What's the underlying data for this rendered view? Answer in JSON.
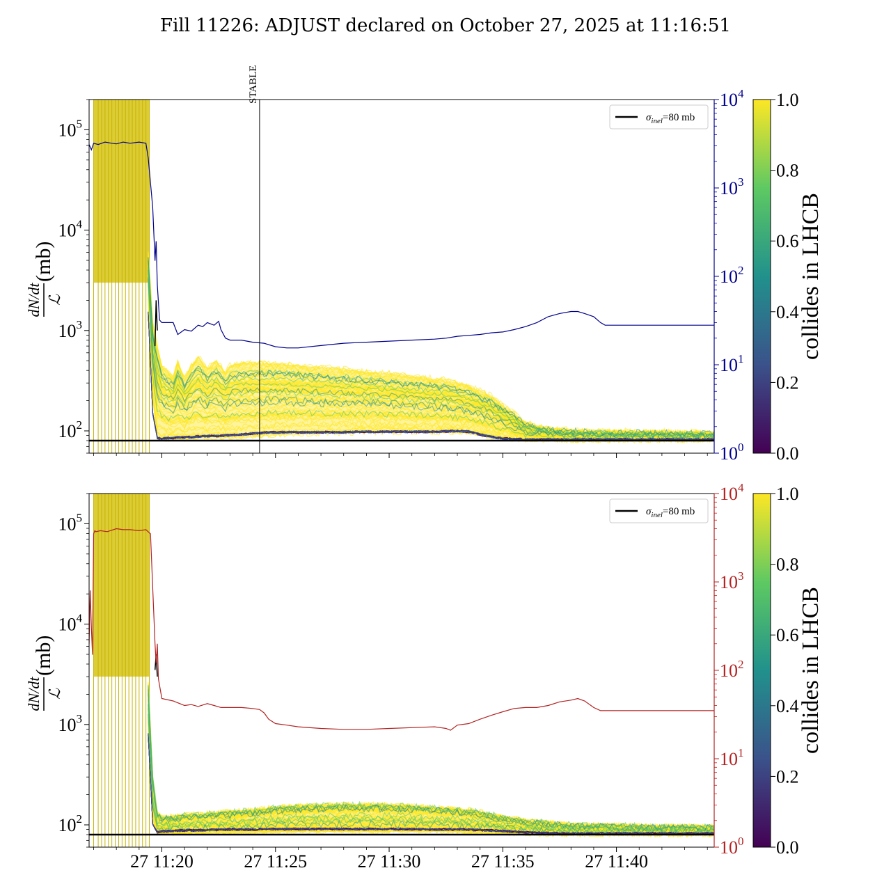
{
  "title": "Fill 11226: ADJUST declared on October 27, 2025 at 11:16:51",
  "colors": {
    "top_right_axis": "#00008b",
    "bottom_right_axis": "#b22222",
    "reference_line": "#000000",
    "colormap": [
      "#440154",
      "#3b528b",
      "#21918c",
      "#5ec962",
      "#fde725"
    ]
  },
  "chart_data": [
    {
      "type": "line",
      "name": "top",
      "yscale": "log",
      "ylim": [
        60,
        200000
      ],
      "ylabel_fraction_top": "dN/dt",
      "ylabel_fraction_bottom": "ℒ",
      "ylabel_unit": " (mb)",
      "left_ticks": [
        {
          "base": "10",
          "exp": "2",
          "value": 100
        },
        {
          "base": "10",
          "exp": "3",
          "value": 1000
        },
        {
          "base": "10",
          "exp": "4",
          "value": 10000
        },
        {
          "base": "10",
          "exp": "5",
          "value": 100000
        }
      ],
      "right_yscale": "log",
      "right_ylim": [
        1,
        10000
      ],
      "right_ticks": [
        {
          "base": "10",
          "exp": "0",
          "value": 1
        },
        {
          "base": "10",
          "exp": "1",
          "value": 10
        },
        {
          "base": "10",
          "exp": "2",
          "value": 100
        },
        {
          "base": "10",
          "exp": "3",
          "value": 1000
        },
        {
          "base": "10",
          "exp": "4",
          "value": 10000
        }
      ],
      "xlim_min": [
        16.8,
        44.3
      ],
      "x_ticks": [
        {
          "label": "27 11:20",
          "value": 20
        },
        {
          "label": "27 11:25",
          "value": 25
        },
        {
          "label": "27 11:30",
          "value": 30
        },
        {
          "label": "27 11:35",
          "value": 35
        },
        {
          "label": "27 11:40",
          "value": 40
        }
      ],
      "x_ticklabels_shown": false,
      "annotation": {
        "label": "STABLE",
        "x": 24.3
      },
      "legend": {
        "position": "upper right",
        "label_symbol": "σ",
        "label_sub": "inel",
        "label_rest": "=80 mb"
      },
      "reference_value": 80,
      "right_series": {
        "color": "#00008b",
        "x": [
          16.8,
          16.9,
          17.0,
          17.2,
          17.5,
          17.8,
          18.0,
          18.3,
          18.6,
          19.0,
          19.3,
          19.4,
          19.6,
          19.7,
          19.75,
          19.8,
          19.9,
          20.0,
          20.5,
          20.7,
          21.0,
          21.3,
          21.6,
          21.8,
          22.0,
          22.3,
          22.5,
          22.6,
          22.8,
          23.0,
          23.5,
          24.0,
          24.5,
          25.0,
          25.5,
          26.0,
          27.0,
          28.0,
          29.0,
          30.0,
          31.0,
          32.0,
          32.5,
          33.0,
          33.5,
          34.0,
          34.5,
          35.0,
          35.5,
          36.0,
          36.5,
          37.0,
          37.5,
          38.0,
          38.3,
          38.6,
          39.0,
          39.3,
          39.5,
          40.0,
          41.0,
          42.0,
          43.0,
          44.3
        ],
        "y": [
          3100,
          2700,
          3200,
          3100,
          3300,
          3200,
          3150,
          3300,
          3200,
          3300,
          3200,
          2200,
          600,
          150,
          250,
          80,
          32,
          30,
          30,
          22,
          25,
          24,
          28,
          27,
          30,
          28,
          31,
          25,
          20,
          19,
          19,
          18,
          17.5,
          16,
          15.5,
          15.5,
          16.5,
          17.5,
          18,
          18.5,
          19,
          19.5,
          20,
          21,
          21.5,
          22,
          23,
          23.5,
          25,
          27,
          30,
          35,
          38,
          40,
          40,
          38,
          35,
          30,
          28,
          28,
          28,
          28,
          28,
          28
        ]
      },
      "left_series": {
        "color": "#000000",
        "x": [
          19.7,
          19.75,
          19.8
        ],
        "y": [
          700,
          2000,
          1000
        ]
      },
      "bunch_band_summary": {
        "colorbar_label": "collides in LHCB",
        "colorbar_ticks": [
          "0.0",
          "0.2",
          "0.4",
          "0.6",
          "0.8",
          "1.0"
        ],
        "colorbar_range": [
          0,
          1
        ],
        "spike_x": [
          17.0,
          17.2,
          17.35,
          17.5,
          17.65,
          17.8,
          17.95,
          18.1,
          18.25,
          18.4,
          18.55,
          18.7,
          18.85,
          19.0,
          19.15,
          19.3,
          19.45
        ],
        "upper_x": [
          19.4,
          19.6,
          19.8,
          20.0,
          20.5,
          20.7,
          21.0,
          21.3,
          21.6,
          22.0,
          22.4,
          22.8,
          23.0,
          23.5,
          24.0,
          24.5,
          25.0,
          26.0,
          27.0,
          28.0,
          29.0,
          30.0,
          31.0,
          32.0,
          32.5,
          33.0,
          33.5,
          34.0,
          34.5,
          35.0,
          35.5,
          36.0,
          37.0,
          38.0,
          40.0,
          42.0,
          44.3
        ],
        "upper_y": [
          6000,
          1200,
          700,
          450,
          350,
          500,
          330,
          450,
          550,
          420,
          500,
          380,
          450,
          480,
          470,
          480,
          470,
          450,
          430,
          410,
          390,
          370,
          350,
          330,
          320,
          300,
          280,
          250,
          220,
          180,
          150,
          120,
          105,
          100,
          98,
          97,
          95
        ],
        "yellow_median_y": [
          3000,
          500,
          200,
          150,
          140,
          150,
          150,
          160,
          170,
          170,
          170,
          170,
          180,
          200,
          220,
          230,
          225,
          215,
          205,
          195,
          188,
          180,
          172,
          166,
          160,
          150,
          140,
          130,
          120,
          110,
          100,
          92,
          90,
          90,
          89,
          89,
          88
        ],
        "lower_y": [
          2000,
          200,
          84,
          82,
          82,
          82,
          82,
          82,
          83,
          83,
          84,
          84,
          84,
          85,
          86,
          88,
          90,
          92,
          93,
          94,
          95,
          96,
          96,
          96,
          96,
          96,
          94,
          90,
          86,
          83,
          82,
          81,
          81,
          81,
          81,
          81,
          81
        ],
        "dark_y": [
          1500,
          150,
          85,
          84,
          85,
          86,
          86,
          87,
          88,
          89,
          89,
          90,
          91,
          92,
          94,
          96,
          97,
          97,
          97,
          97,
          98,
          98,
          98,
          98,
          99,
          100,
          98,
          92,
          87,
          84,
          83,
          82,
          82,
          82,
          82,
          82,
          82
        ]
      }
    },
    {
      "type": "line",
      "name": "bottom",
      "yscale": "log",
      "ylim": [
        60,
        200000
      ],
      "ylabel_fraction_top": "dN/dt",
      "ylabel_fraction_bottom": "ℒ",
      "ylabel_unit": " (mb)",
      "left_ticks": [
        {
          "base": "10",
          "exp": "2",
          "value": 100
        },
        {
          "base": "10",
          "exp": "3",
          "value": 1000
        },
        {
          "base": "10",
          "exp": "4",
          "value": 10000
        },
        {
          "base": "10",
          "exp": "5",
          "value": 100000
        }
      ],
      "right_yscale": "log",
      "right_ylim": [
        1,
        10000
      ],
      "right_ticks": [
        {
          "base": "10",
          "exp": "0",
          "value": 1
        },
        {
          "base": "10",
          "exp": "1",
          "value": 10
        },
        {
          "base": "10",
          "exp": "2",
          "value": 100
        },
        {
          "base": "10",
          "exp": "3",
          "value": 1000
        },
        {
          "base": "10",
          "exp": "4",
          "value": 10000
        }
      ],
      "xlim_min": [
        16.8,
        44.3
      ],
      "x_ticks": [
        {
          "label": "27 11:20",
          "value": 20
        },
        {
          "label": "27 11:25",
          "value": 25
        },
        {
          "label": "27 11:30",
          "value": 30
        },
        {
          "label": "27 11:35",
          "value": 35
        },
        {
          "label": "27 11:40",
          "value": 40
        }
      ],
      "x_ticklabels_shown": true,
      "legend": {
        "position": "upper right",
        "label_symbol": "σ",
        "label_sub": "inel",
        "label_rest": "=80 mb"
      },
      "reference_value": 80,
      "right_series": {
        "color": "#b22222",
        "x": [
          16.8,
          16.85,
          16.9,
          16.95,
          17.0,
          17.05,
          17.1,
          17.3,
          17.6,
          18.0,
          18.3,
          18.6,
          19.0,
          19.3,
          19.5,
          19.7,
          19.75,
          19.8,
          19.85,
          20.0,
          20.5,
          21.0,
          21.3,
          21.6,
          22.0,
          22.3,
          22.6,
          23.0,
          23.5,
          24.0,
          24.3,
          24.5,
          24.7,
          25.0,
          25.5,
          26.0,
          27.0,
          28.0,
          29.0,
          30.0,
          31.0,
          32.0,
          32.5,
          32.7,
          33.0,
          33.5,
          34.0,
          34.5,
          35.0,
          35.5,
          36.0,
          36.5,
          37.0,
          37.5,
          38.0,
          38.3,
          38.6,
          39.0,
          39.3,
          40.0,
          41.0,
          42.0,
          43.0,
          44.3
        ],
        "y": [
          200,
          800,
          300,
          150,
          3500,
          3800,
          3700,
          3800,
          3700,
          4000,
          3900,
          3900,
          3800,
          3900,
          3500,
          200,
          120,
          200,
          80,
          48,
          45,
          40,
          41,
          39,
          42,
          40,
          38,
          38,
          38,
          37,
          36,
          33,
          28,
          25,
          24,
          23,
          22,
          21.5,
          21.5,
          22,
          22.5,
          23,
          22,
          21,
          24,
          25,
          28,
          31,
          34,
          37,
          38,
          38,
          40,
          44,
          46,
          48,
          45,
          38,
          35,
          35,
          35,
          35,
          35,
          35
        ]
      },
      "left_series": {
        "color": "#000000",
        "x": [
          19.7,
          19.75,
          19.8
        ],
        "y": [
          3500,
          5000,
          3000
        ]
      },
      "bunch_band_summary": {
        "colorbar_label": "collides in LHCB",
        "colorbar_ticks": [
          "0.0",
          "0.2",
          "0.4",
          "0.6",
          "0.8",
          "1.0"
        ],
        "colorbar_range": [
          0,
          1
        ],
        "spike_x": [
          17.0,
          17.2,
          17.35,
          17.5,
          17.65,
          17.8,
          17.95,
          18.1,
          18.25,
          18.4,
          18.55,
          18.7,
          18.85,
          19.0,
          19.15,
          19.3,
          19.45
        ],
        "upper_x": [
          19.4,
          19.6,
          19.8,
          20.0,
          20.5,
          21.0,
          22.0,
          23.0,
          24.0,
          25.0,
          26.0,
          27.0,
          28.0,
          29.0,
          30.0,
          31.0,
          32.0,
          33.0,
          34.0,
          35.0,
          36.0,
          37.0,
          38.0,
          40.0,
          42.0,
          44.3
        ],
        "upper_y": [
          2500,
          300,
          130,
          120,
          120,
          125,
          130,
          135,
          140,
          150,
          155,
          158,
          160,
          160,
          158,
          155,
          150,
          145,
          135,
          120,
          110,
          105,
          100,
          98,
          96,
          95
        ],
        "yellow_median_y": [
          1500,
          150,
          95,
          95,
          96,
          98,
          100,
          103,
          108,
          113,
          118,
          120,
          122,
          122,
          121,
          119,
          116,
          112,
          106,
          100,
          96,
          93,
          91,
          90,
          89,
          88
        ],
        "lower_y": [
          1000,
          110,
          82,
          82,
          82,
          82,
          83,
          83,
          84,
          84,
          85,
          85,
          85,
          85,
          85,
          85,
          85,
          84,
          83,
          82,
          81,
          81,
          81,
          81,
          81,
          81
        ],
        "dark_y": [
          800,
          100,
          85,
          86,
          87,
          88,
          89,
          90,
          90,
          91,
          91,
          91,
          91,
          91,
          91,
          91,
          90,
          90,
          89,
          87,
          84,
          83,
          82,
          82,
          82,
          82
        ]
      }
    }
  ]
}
